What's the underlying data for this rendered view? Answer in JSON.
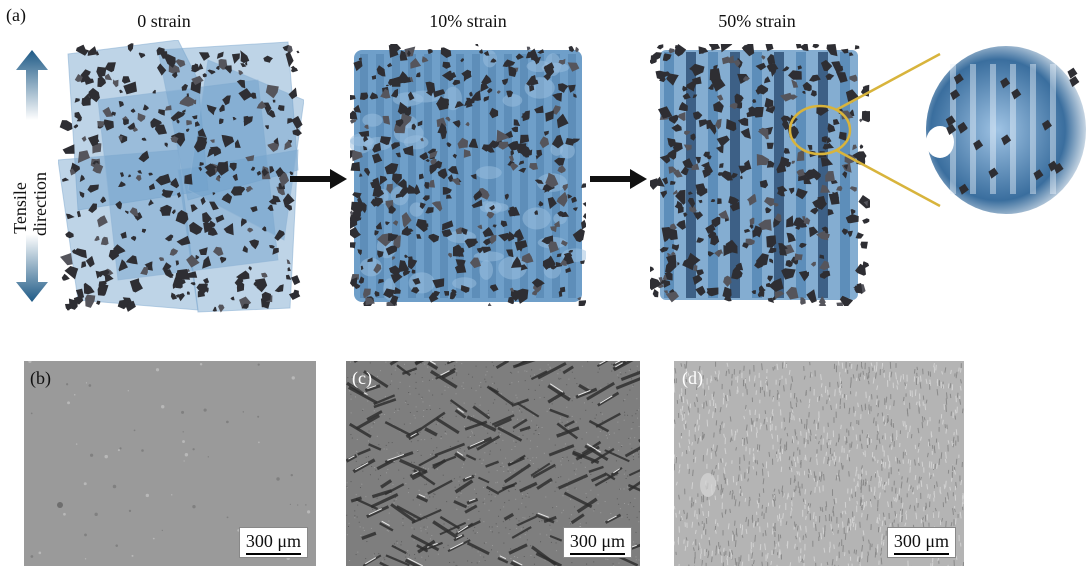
{
  "panel_a": {
    "label": "(a)",
    "tensile_direction": [
      "Tensile",
      "direction"
    ],
    "titles": [
      "0 strain",
      "10% strain",
      "50% strain"
    ],
    "colors": {
      "film": "#6f9fc9",
      "film_dark": "#3f6f9a",
      "flake": "#2e2e33",
      "zoom_ring": "#d8b43c",
      "arrow": "#1e5a86"
    }
  },
  "sem_panels": [
    {
      "label": "(b)",
      "scale": "300 μm",
      "tone": "#9a9a9a"
    },
    {
      "label": "(c)",
      "scale": "300 μm",
      "tone": "#7e7e7e"
    },
    {
      "label": "(d)",
      "scale": "300 μm",
      "tone": "#b4b4b4"
    }
  ]
}
